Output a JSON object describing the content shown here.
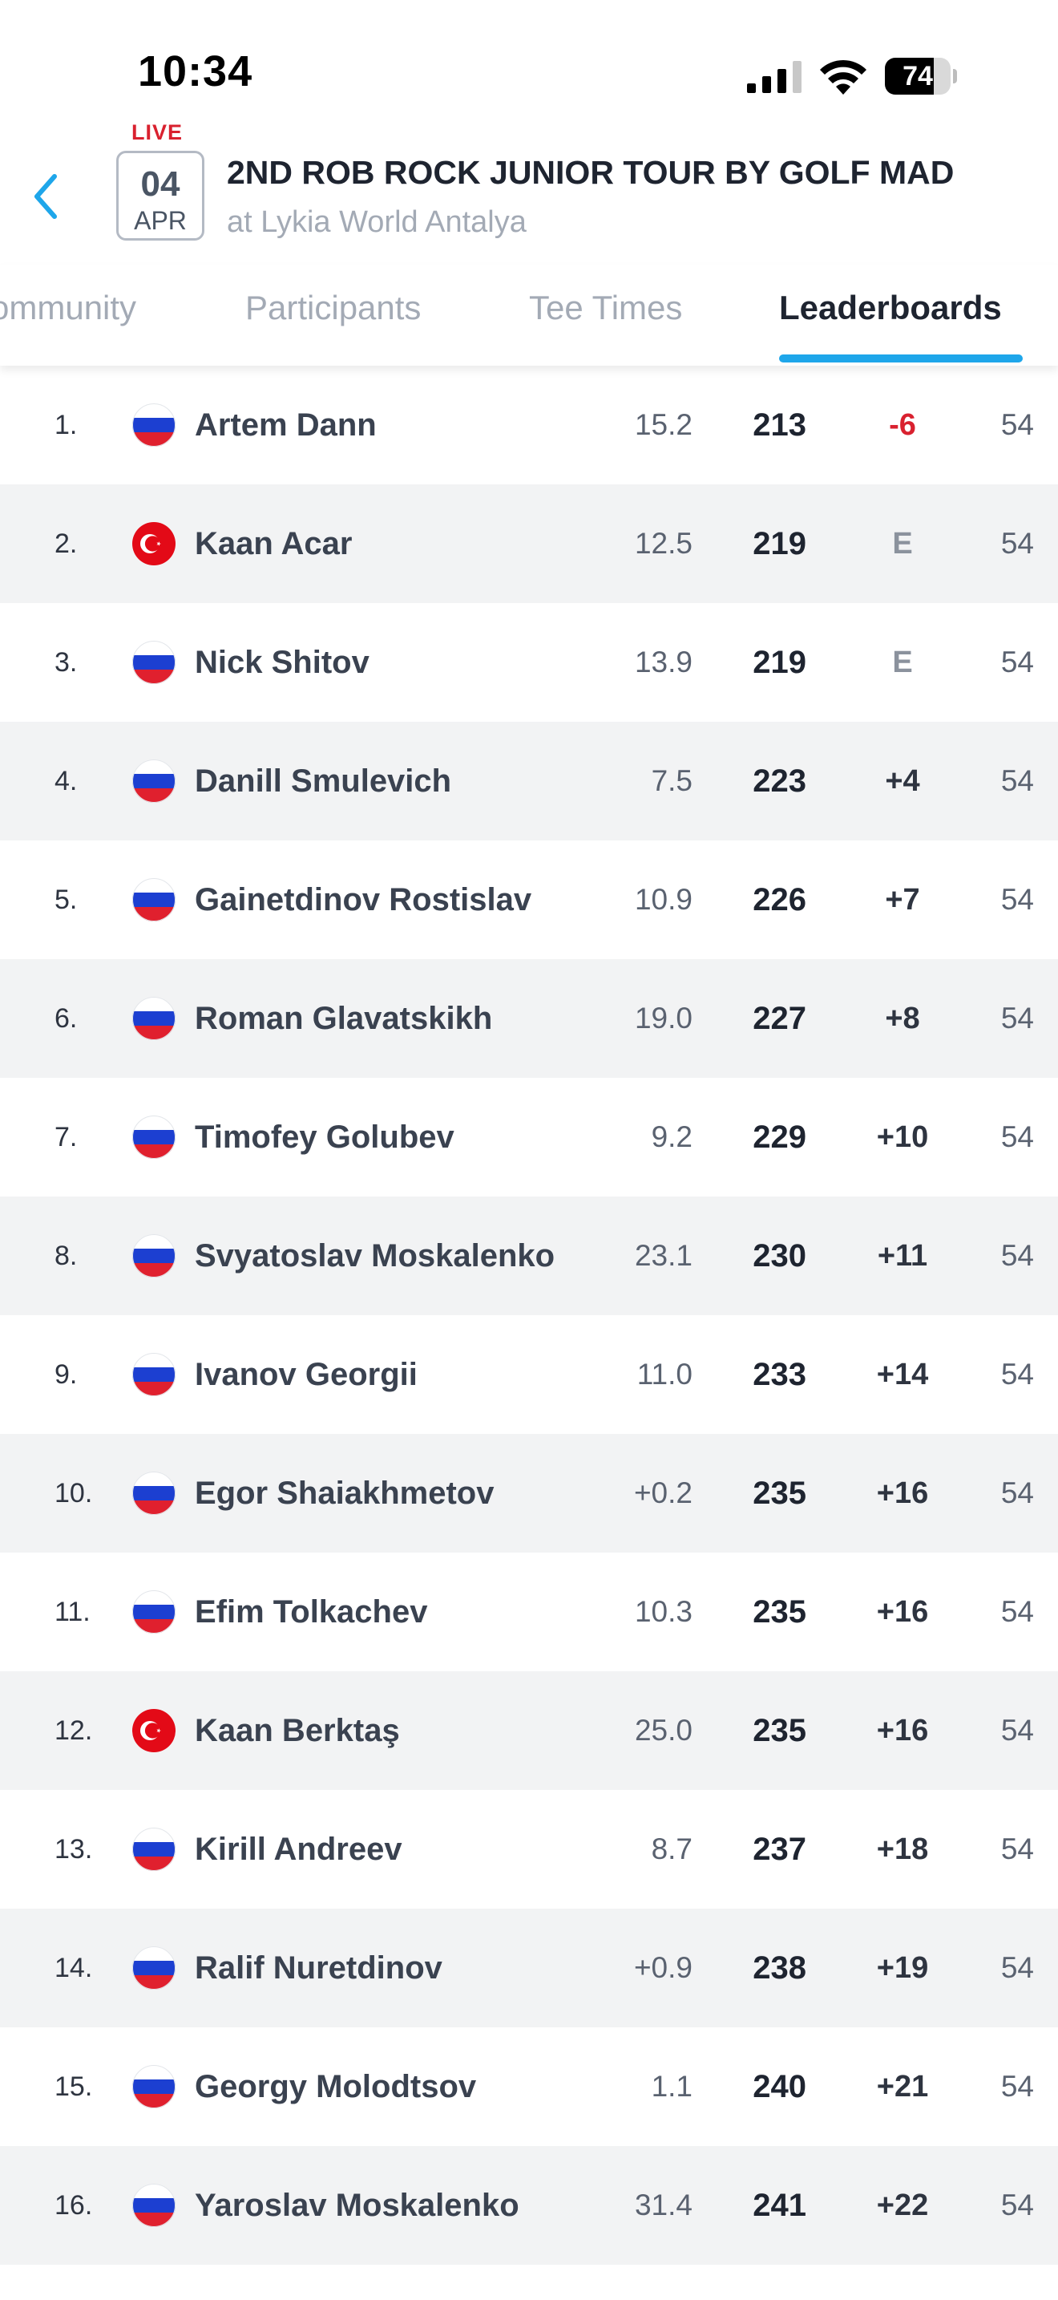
{
  "status_bar": {
    "time": "10:34",
    "battery_level": "74",
    "battery_fraction": 0.74
  },
  "event": {
    "live_label": "LIVE",
    "date_day": "04",
    "date_month": "APR",
    "title": "2ND ROB ROCK JUNIOR TOUR BY GOLF MAD",
    "venue": "at Lykia World Antalya"
  },
  "tabs": [
    {
      "label": "Community",
      "visible_text": "ommunity",
      "active": false
    },
    {
      "label": "Participants",
      "visible_text": "Participants",
      "active": false
    },
    {
      "label": "Tee Times",
      "visible_text": "Tee Times",
      "active": false
    },
    {
      "label": "Leaderboards",
      "visible_text": "Leaderboards",
      "active": true
    }
  ],
  "colors": {
    "accent": "#1ea6ea",
    "live_red": "#d9212f",
    "under_par": "#d9212f",
    "even_par": "#8b929d",
    "row_alt_bg": "#f2f3f4"
  },
  "icons": {
    "back": "chevron-left-icon",
    "signal": "cellular-signal-icon",
    "wifi": "wifi-icon",
    "battery": "battery-icon",
    "flag_ru": "russia-flag-icon",
    "flag_tr": "turkey-flag-icon"
  },
  "leaderboard": {
    "rows": [
      {
        "position": "1.",
        "flag": "ru",
        "name": "Artem Dann",
        "handicap": "15.2",
        "total": "213",
        "to_par": "-6",
        "holes": "54"
      },
      {
        "position": "2.",
        "flag": "tr",
        "name": "Kaan Acar",
        "handicap": "12.5",
        "total": "219",
        "to_par": "E",
        "holes": "54"
      },
      {
        "position": "3.",
        "flag": "ru",
        "name": "Nick Shitov",
        "handicap": "13.9",
        "total": "219",
        "to_par": "E",
        "holes": "54"
      },
      {
        "position": "4.",
        "flag": "ru",
        "name": "Danill Smulevich",
        "handicap": "7.5",
        "total": "223",
        "to_par": "+4",
        "holes": "54"
      },
      {
        "position": "5.",
        "flag": "ru",
        "name": "Gainetdinov Rostislav",
        "handicap": "10.9",
        "total": "226",
        "to_par": "+7",
        "holes": "54"
      },
      {
        "position": "6.",
        "flag": "ru",
        "name": "Roman Glavatskikh",
        "handicap": "19.0",
        "total": "227",
        "to_par": "+8",
        "holes": "54"
      },
      {
        "position": "7.",
        "flag": "ru",
        "name": "Timofey Golubev",
        "handicap": "9.2",
        "total": "229",
        "to_par": "+10",
        "holes": "54"
      },
      {
        "position": "8.",
        "flag": "ru",
        "name": "Svyatoslav Moskalenko",
        "handicap": "23.1",
        "total": "230",
        "to_par": "+11",
        "holes": "54"
      },
      {
        "position": "9.",
        "flag": "ru",
        "name": "Ivanov Georgii",
        "handicap": "11.0",
        "total": "233",
        "to_par": "+14",
        "holes": "54"
      },
      {
        "position": "10.",
        "flag": "ru",
        "name": "Egor Shaiakhmetov",
        "handicap": "+0.2",
        "total": "235",
        "to_par": "+16",
        "holes": "54"
      },
      {
        "position": "11.",
        "flag": "ru",
        "name": "Efim Tolkachev",
        "handicap": "10.3",
        "total": "235",
        "to_par": "+16",
        "holes": "54"
      },
      {
        "position": "12.",
        "flag": "tr",
        "name": "Kaan Berktaş",
        "handicap": "25.0",
        "total": "235",
        "to_par": "+16",
        "holes": "54"
      },
      {
        "position": "13.",
        "flag": "ru",
        "name": "Kirill Andreev",
        "handicap": "8.7",
        "total": "237",
        "to_par": "+18",
        "holes": "54"
      },
      {
        "position": "14.",
        "flag": "ru",
        "name": "Ralif Nuretdinov",
        "handicap": "+0.9",
        "total": "238",
        "to_par": "+19",
        "holes": "54"
      },
      {
        "position": "15.",
        "flag": "ru",
        "name": "Georgy Molodtsov",
        "handicap": "1.1",
        "total": "240",
        "to_par": "+21",
        "holes": "54"
      },
      {
        "position": "16.",
        "flag": "ru",
        "name": "Yaroslav Moskalenko",
        "handicap": "31.4",
        "total": "241",
        "to_par": "+22",
        "holes": "54"
      }
    ]
  }
}
